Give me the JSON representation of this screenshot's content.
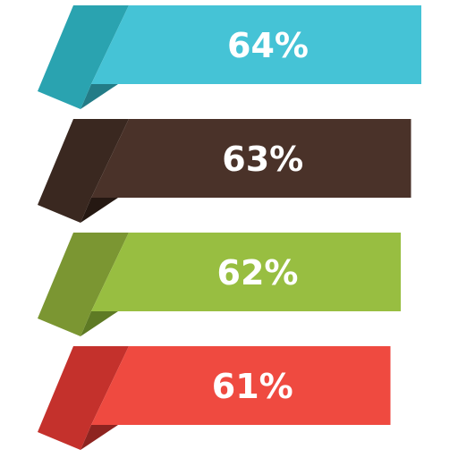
{
  "chart_data": {
    "type": "bar",
    "orientation": "horizontal",
    "categories": [
      "",
      "",
      "",
      ""
    ],
    "values": [
      64,
      63,
      62,
      61
    ],
    "unit": "%",
    "labels": [
      "64%",
      "63%",
      "62%",
      "61%"
    ],
    "colors": {
      "main": [
        "#45C3D6",
        "#4A3229",
        "#98BE41",
        "#EF4A40"
      ],
      "fold": [
        "#2AA3B0",
        "#3A2820",
        "#7B9632",
        "#C4312C"
      ],
      "shadow": [
        "#237C87",
        "#251812",
        "#5E7A24",
        "#8E2420"
      ]
    },
    "grid": false,
    "legend": "none"
  }
}
